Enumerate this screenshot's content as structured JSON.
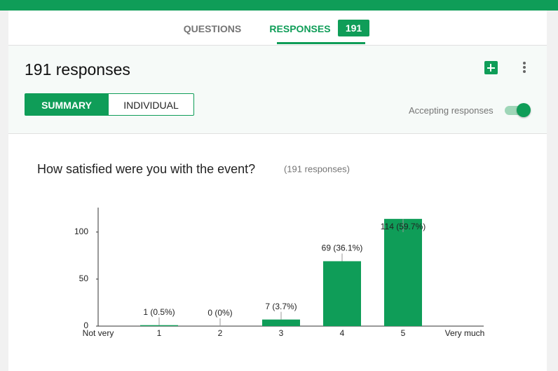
{
  "tabs": {
    "questions": "QUESTIONS",
    "responses": "RESPONSES",
    "badge": "191"
  },
  "header": {
    "title": "191 responses",
    "summary": "SUMMARY",
    "individual": "INDIVIDUAL",
    "accepting": "Accepting responses"
  },
  "chart_data": {
    "type": "bar",
    "title": "How satisfied were you with the event?",
    "subtitle": "(191 responses)",
    "categories": [
      "1",
      "2",
      "3",
      "4",
      "5"
    ],
    "values": [
      1,
      0,
      7,
      69,
      114
    ],
    "value_labels": [
      "1 (0.5%)",
      "0 (0%)",
      "7 (3.7%)",
      "69 (36.1%)",
      "114 (59.7%)"
    ],
    "x_start_label": "Not very",
    "x_end_label": "Very much",
    "color": "#0f9d58",
    "ylim": [
      0,
      126
    ],
    "yticks": [
      0,
      50,
      100
    ]
  }
}
